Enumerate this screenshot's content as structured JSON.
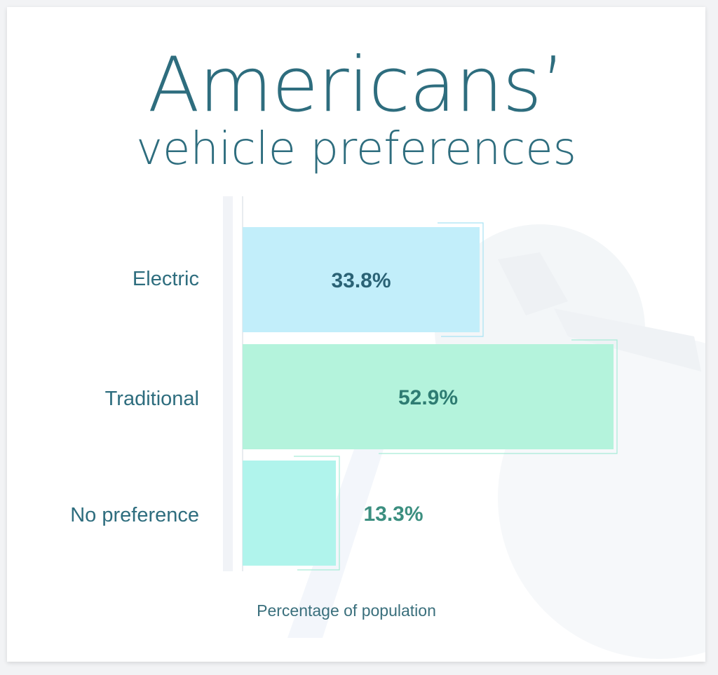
{
  "chart_data": {
    "type": "bar",
    "orientation": "horizontal",
    "title": "Americans’",
    "subtitle": "vehicle preferences",
    "categories": [
      "Electric",
      "Traditional",
      "No preference"
    ],
    "values": [
      33.8,
      52.9,
      13.3
    ],
    "value_labels": [
      "33.8%",
      "52.9%",
      "13.3%"
    ],
    "xlabel": "Percentage of population",
    "ylabel": "",
    "xlim": [
      0,
      55
    ],
    "grid": false,
    "legend": "none",
    "colors": [
      "#c2eefa",
      "#b4f3dc",
      "#b0f4ec"
    ],
    "label_colors": [
      "#2a6275",
      "#2e7c72",
      "#3c8f80"
    ],
    "text_color": "#2e6d7e"
  }
}
